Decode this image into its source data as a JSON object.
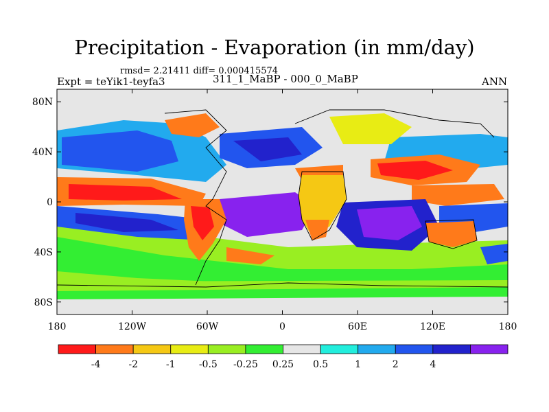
{
  "title": "Precipitation - Evaporation (in mm/day)",
  "subtitle_stats": "rmsd= 2.21411 diff= 0.000415574",
  "experiment": "Expt = teYik1-teyfa3",
  "period": "311_1_MaBP - 000_0_MaBP",
  "season": "ANN",
  "map": {
    "lon_range": [
      -180,
      180
    ],
    "lat_range": [
      -90,
      90
    ],
    "x_ticks": [
      {
        "value": -180,
        "label": "180"
      },
      {
        "value": -120,
        "label": "120W"
      },
      {
        "value": -60,
        "label": "60W"
      },
      {
        "value": 0,
        "label": "0"
      },
      {
        "value": 60,
        "label": "60E"
      },
      {
        "value": 120,
        "label": "120E"
      },
      {
        "value": 180,
        "label": "180"
      }
    ],
    "y_ticks": [
      {
        "value": 80,
        "label": "80N"
      },
      {
        "value": 40,
        "label": "40N"
      },
      {
        "value": 0,
        "label": "0"
      },
      {
        "value": -40,
        "label": "40S"
      },
      {
        "value": -80,
        "label": "80S"
      }
    ]
  },
  "colorbar": {
    "colors": [
      "#ff1a1a",
      "#ff7a1a",
      "#f5c814",
      "#e8ec14",
      "#99ee22",
      "#33ee33",
      "#e6e6e6",
      "#22eedd",
      "#22aaee",
      "#2255ee",
      "#2222cc",
      "#8822ee"
    ],
    "labels": [
      "-4",
      "-2",
      "-1",
      "-0.5",
      "-0.25",
      "0.25",
      "0.5",
      "1",
      "2",
      "4"
    ]
  }
}
